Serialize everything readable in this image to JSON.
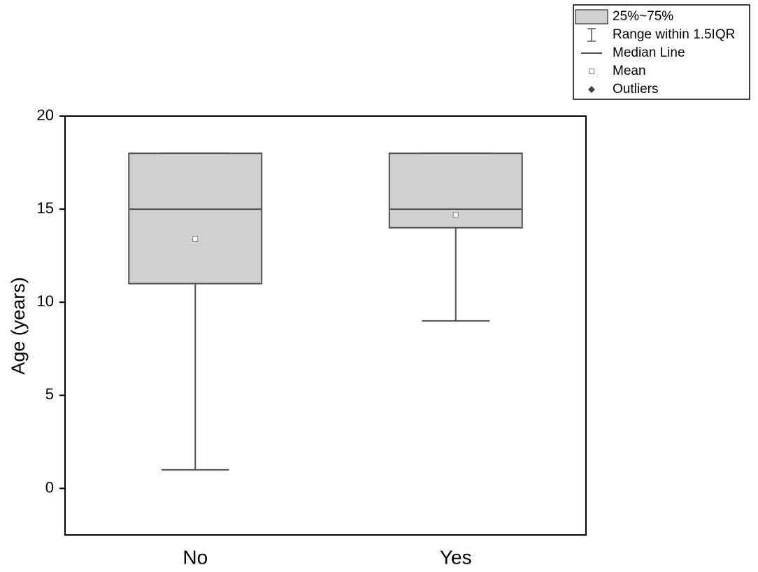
{
  "chart_data": {
    "type": "box",
    "y_label": "Age (years)",
    "categories": [
      "No",
      "Yes"
    ],
    "whisker_low": [
      1,
      9
    ],
    "q1": [
      11,
      14
    ],
    "median": [
      15,
      15
    ],
    "q3": [
      18,
      18
    ],
    "whisker_high": [
      18,
      18
    ],
    "mean": [
      13.4,
      14.7
    ],
    "box_color": "#d0d0d0",
    "line_color": "#505050",
    "ylim": [
      -2.5,
      20
    ],
    "yticks": [
      0,
      5,
      10,
      15,
      20
    ],
    "legend_items": [
      "25%~75%",
      "Range within 1.5IQR",
      "Median Line",
      "Mean",
      "Outliers"
    ],
    "legend_position": "top-right"
  }
}
